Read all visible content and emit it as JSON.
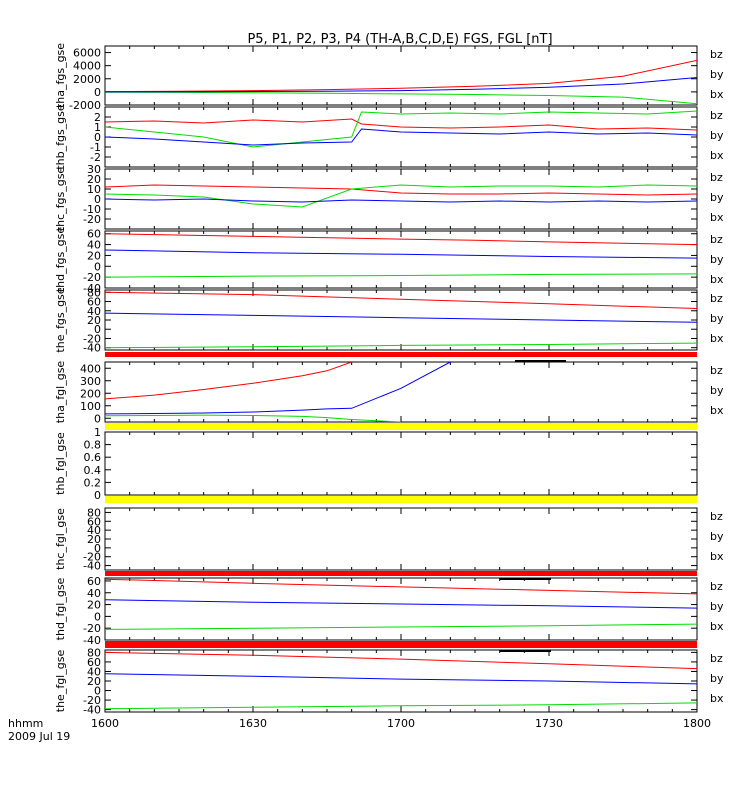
{
  "title": "P5, P1, P2, P3, P4 (TH-A,B,C,D,E) FGS, FGL [nT]",
  "colors": {
    "bz": "#ff0000",
    "by": "#00dd00",
    "bx": "#0000ff",
    "bar_red": "#ff0000",
    "bar_yellow": "#ffff00",
    "bar_black": "#000000"
  },
  "xaxis": {
    "label_units": "hhmm",
    "label_date": "2009 Jul 19",
    "tick_labels": [
      "1600",
      "1630",
      "1700",
      "1730",
      "1800"
    ]
  },
  "chart_data": [
    {
      "type": "line",
      "ylabel": "tha_fgs_gse",
      "ylim": [
        -2000,
        7000
      ],
      "yticks": [
        -2000,
        0,
        2000,
        4000,
        6000
      ],
      "legend": [
        "bz",
        "by",
        "bx"
      ],
      "legend_position": "right",
      "x": [
        "1600",
        "1615",
        "1630",
        "1645",
        "1700",
        "1715",
        "1730",
        "1745",
        "1800"
      ],
      "series": [
        {
          "name": "bz",
          "values": [
            50,
            100,
            200,
            350,
            550,
            850,
            1300,
            2400,
            4800
          ]
        },
        {
          "name": "by",
          "values": [
            -50,
            -80,
            -120,
            -200,
            -300,
            -400,
            -550,
            -800,
            -1800
          ]
        },
        {
          "name": "bx",
          "values": [
            0,
            30,
            60,
            100,
            200,
            400,
            700,
            1200,
            2200
          ]
        }
      ]
    },
    {
      "type": "line",
      "ylabel": "thb_fgs_gse",
      "ylim": [
        -3,
        3
      ],
      "yticks": [
        -2,
        -1,
        0,
        1,
        2
      ],
      "legend": [
        "bz",
        "by",
        "bx"
      ],
      "legend_position": "right",
      "x": [
        "1600",
        "1610",
        "1620",
        "1630",
        "1640",
        "1650",
        "1652",
        "1700",
        "1710",
        "1720",
        "1730",
        "1740",
        "1750",
        "1800"
      ],
      "series": [
        {
          "name": "bz",
          "values": [
            1.5,
            1.6,
            1.4,
            1.7,
            1.5,
            1.8,
            1.3,
            1.0,
            0.9,
            1.0,
            1.2,
            0.8,
            0.9,
            0.7
          ]
        },
        {
          "name": "by",
          "values": [
            1.0,
            0.5,
            0.0,
            -1.0,
            -0.5,
            0.0,
            2.5,
            2.3,
            2.4,
            2.3,
            2.5,
            2.4,
            2.3,
            2.6
          ]
        },
        {
          "name": "bx",
          "values": [
            0.0,
            -0.2,
            -0.5,
            -0.8,
            -0.6,
            -0.5,
            0.8,
            0.5,
            0.4,
            0.3,
            0.5,
            0.3,
            0.4,
            0.2
          ]
        }
      ]
    },
    {
      "type": "line",
      "ylabel": "thc_fgs_gse",
      "ylim": [
        -30,
        30
      ],
      "yticks": [
        -20,
        -10,
        0,
        10,
        20,
        30
      ],
      "legend": [
        "bz",
        "by",
        "bx"
      ],
      "legend_position": "right",
      "x": [
        "1600",
        "1610",
        "1620",
        "1630",
        "1640",
        "1650",
        "1700",
        "1710",
        "1720",
        "1730",
        "1740",
        "1750",
        "1800"
      ],
      "series": [
        {
          "name": "bz",
          "values": [
            12,
            14,
            13,
            12,
            11,
            10,
            6,
            5,
            5,
            6,
            5,
            4,
            5
          ]
        },
        {
          "name": "by",
          "values": [
            5,
            4,
            2,
            -5,
            -8,
            10,
            14,
            12,
            13,
            13,
            12,
            14,
            13
          ]
        },
        {
          "name": "bx",
          "values": [
            0,
            -1,
            0,
            -2,
            -3,
            -1,
            -2,
            -3,
            -2,
            -3,
            -2,
            -3,
            -2
          ]
        }
      ]
    },
    {
      "type": "line",
      "ylabel": "thd_fgs_gse",
      "ylim": [
        -40,
        65
      ],
      "yticks": [
        -40,
        -20,
        0,
        20,
        40,
        60
      ],
      "legend": [
        "bz",
        "by",
        "bx"
      ],
      "legend_position": "right",
      "x": [
        "1600",
        "1630",
        "1700",
        "1715",
        "1730",
        "1800"
      ],
      "series": [
        {
          "name": "bz",
          "values": [
            60,
            55,
            50,
            48,
            45,
            40
          ]
        },
        {
          "name": "by",
          "values": [
            -20,
            -18,
            -17,
            -16,
            -15,
            -14
          ]
        },
        {
          "name": "bx",
          "values": [
            30,
            25,
            22,
            20,
            18,
            15
          ]
        }
      ]
    },
    {
      "type": "line",
      "ylabel": "the_fgs_gse",
      "ylim": [
        -45,
        85
      ],
      "yticks": [
        -40,
        -20,
        0,
        20,
        40,
        60,
        80
      ],
      "legend": [
        "bz",
        "by",
        "bx"
      ],
      "legend_position": "right",
      "x": [
        "1600",
        "1630",
        "1700",
        "1730",
        "1800"
      ],
      "series": [
        {
          "name": "bz",
          "values": [
            80,
            75,
            65,
            55,
            45
          ]
        },
        {
          "name": "by",
          "values": [
            -40,
            -38,
            -35,
            -33,
            -30
          ]
        },
        {
          "name": "bx",
          "values": [
            35,
            30,
            25,
            20,
            15
          ]
        }
      ]
    },
    {
      "type": "line",
      "ylabel": "tha_fgl_gse",
      "ylim": [
        -30,
        450
      ],
      "yticks": [
        0,
        100,
        200,
        300,
        400
      ],
      "legend": [
        "bz",
        "by",
        "bx"
      ],
      "legend_position": "right",
      "x": [
        "1600",
        "1610",
        "1620",
        "1630",
        "1640",
        "1645",
        "1650",
        "1700",
        "1710"
      ],
      "series": [
        {
          "name": "bz",
          "values": [
            155,
            185,
            230,
            280,
            340,
            380,
            450,
            null,
            null
          ]
        },
        {
          "name": "by",
          "values": [
            20,
            22,
            25,
            22,
            15,
            5,
            -10,
            -30,
            null
          ]
        },
        {
          "name": "bx",
          "values": [
            35,
            38,
            42,
            50,
            65,
            75,
            80,
            240,
            450
          ]
        }
      ]
    },
    {
      "type": "line",
      "ylabel": "thb_fgl_gse",
      "ylim": [
        0.0,
        1.0
      ],
      "yticks": [
        0.0,
        0.2,
        0.4,
        0.6,
        0.8,
        1.0
      ],
      "legend": [],
      "legend_position": "right",
      "x": [],
      "series": []
    },
    {
      "type": "line",
      "ylabel": "thc_fgl_gse",
      "ylim": [
        -50,
        90
      ],
      "yticks": [
        -40,
        -20,
        0,
        20,
        40,
        60,
        80
      ],
      "legend": [
        "bz",
        "by",
        "bx"
      ],
      "legend_position": "right",
      "x": [],
      "series": []
    },
    {
      "type": "line",
      "ylabel": "thd_fgl_gse",
      "ylim": [
        -40,
        65
      ],
      "yticks": [
        -40,
        -20,
        0,
        20,
        40,
        60
      ],
      "legend": [
        "bz",
        "by",
        "bx"
      ],
      "legend_position": "right",
      "x": [
        "1600",
        "1630",
        "1700",
        "1730",
        "1800"
      ],
      "series": [
        {
          "name": "bz",
          "values": [
            63,
            56,
            50,
            44,
            38
          ]
        },
        {
          "name": "by",
          "values": [
            -22,
            -20,
            -18,
            -16,
            -13
          ]
        },
        {
          "name": "bx",
          "values": [
            28,
            24,
            21,
            18,
            14
          ]
        }
      ]
    },
    {
      "type": "line",
      "ylabel": "the_fgl_gse",
      "ylim": [
        -45,
        85
      ],
      "yticks": [
        -40,
        -20,
        0,
        20,
        40,
        60,
        80
      ],
      "legend": [
        "bz",
        "by",
        "bx"
      ],
      "legend_position": "right",
      "x": [
        "1600",
        "1630",
        "1700",
        "1730",
        "1800"
      ],
      "series": [
        {
          "name": "bz",
          "values": [
            80,
            74,
            66,
            56,
            46
          ]
        },
        {
          "name": "by",
          "values": [
            -38,
            -35,
            -32,
            -30,
            -26
          ]
        },
        {
          "name": "bx",
          "values": [
            35,
            30,
            24,
            20,
            14
          ]
        }
      ]
    }
  ]
}
